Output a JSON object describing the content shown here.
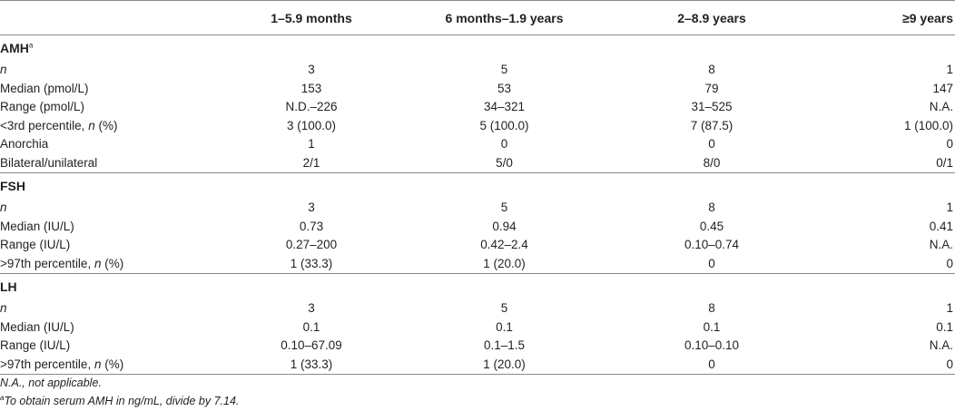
{
  "columns": [
    "",
    "1–5.9 months",
    "6 months–1.9 years",
    "2–8.9 years",
    "≥9 years"
  ],
  "sections": [
    {
      "title": "AMH",
      "title_sup": "a",
      "rows": [
        {
          "label": "n",
          "italic_label": true,
          "values": [
            "3",
            "5",
            "8",
            "1"
          ]
        },
        {
          "label": "Median (pmol/L)",
          "values": [
            "153",
            "53",
            "79",
            "147"
          ]
        },
        {
          "label": "Range (pmol/L)",
          "values": [
            "N.D.–226",
            "34–321",
            "31–525",
            "N.A."
          ]
        },
        {
          "label_pre": "<3rd percentile, ",
          "label_n": "n",
          "label_post": " (%)",
          "values": [
            "3 (100.0)",
            "5 (100.0)",
            "7 (87.5)",
            "1 (100.0)"
          ]
        },
        {
          "label": "Anorchia",
          "values": [
            "1",
            "0",
            "0",
            "0"
          ]
        },
        {
          "label": "Bilateral/unilateral",
          "values": [
            "2/1",
            "5/0",
            "8/0",
            "0/1"
          ]
        }
      ]
    },
    {
      "title": "FSH",
      "rows": [
        {
          "label": "n",
          "italic_label": true,
          "values": [
            "3",
            "5",
            "8",
            "1"
          ]
        },
        {
          "label": "Median (IU/L)",
          "values": [
            "0.73",
            "0.94",
            "0.45",
            "0.41"
          ]
        },
        {
          "label": "Range (IU/L)",
          "values": [
            "0.27–200",
            "0.42–2.4",
            "0.10–0.74",
            "N.A."
          ]
        },
        {
          "label_pre": ">97th percentile, ",
          "label_n": "n",
          "label_post": " (%)",
          "values": [
            "1 (33.3)",
            "1 (20.0)",
            "0",
            "0"
          ]
        }
      ]
    },
    {
      "title": "LH",
      "rows": [
        {
          "label": "n",
          "italic_label": true,
          "values": [
            "3",
            "5",
            "8",
            "1"
          ]
        },
        {
          "label": "Median (IU/L)",
          "values": [
            "0.1",
            "0.1",
            "0.1",
            "0.1"
          ]
        },
        {
          "label": "Range (IU/L)",
          "values": [
            "0.10–67.09",
            "0.1–1.5",
            "0.10–0.10",
            "N.A."
          ]
        },
        {
          "label_pre": ">97th percentile, ",
          "label_n": "n",
          "label_post": " (%)",
          "values": [
            "1 (33.3)",
            "1 (20.0)",
            "0",
            "0"
          ]
        }
      ]
    }
  ],
  "footnotes": {
    "na": "N.A., not applicable.",
    "amh_sup": "a",
    "amh": "To obtain serum AMH in ng/mL, divide by 7.14."
  }
}
